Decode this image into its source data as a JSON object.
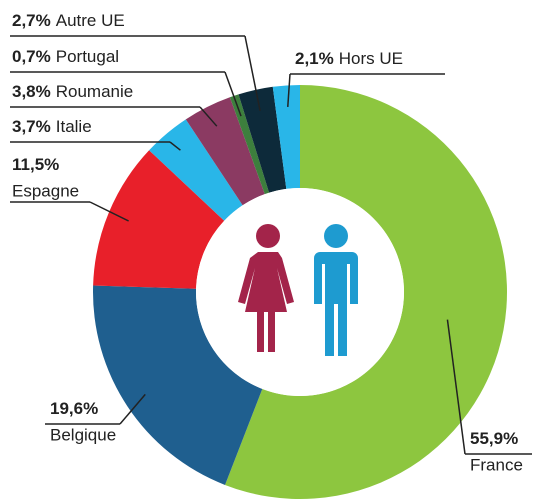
{
  "chart_data": {
    "type": "donut",
    "categories": [
      "France",
      "Belgique",
      "Espagne",
      "Italie",
      "Roumanie",
      "Portugal",
      "Autre UE",
      "Hors UE"
    ],
    "values": [
      55.9,
      19.6,
      11.5,
      3.7,
      3.8,
      0.7,
      2.7,
      2.1
    ],
    "value_labels": [
      "55,9%",
      "19,6%",
      "11,5%",
      "3,7%",
      "3,8%",
      "0,7%",
      "2,7%",
      "2,1%"
    ],
    "colors": [
      "#8dc63f",
      "#1f5f8f",
      "#e8202a",
      "#29b6e8",
      "#8b3a62",
      "#3d7f3d",
      "#0d2a3a",
      "#29b6e8"
    ]
  }
}
